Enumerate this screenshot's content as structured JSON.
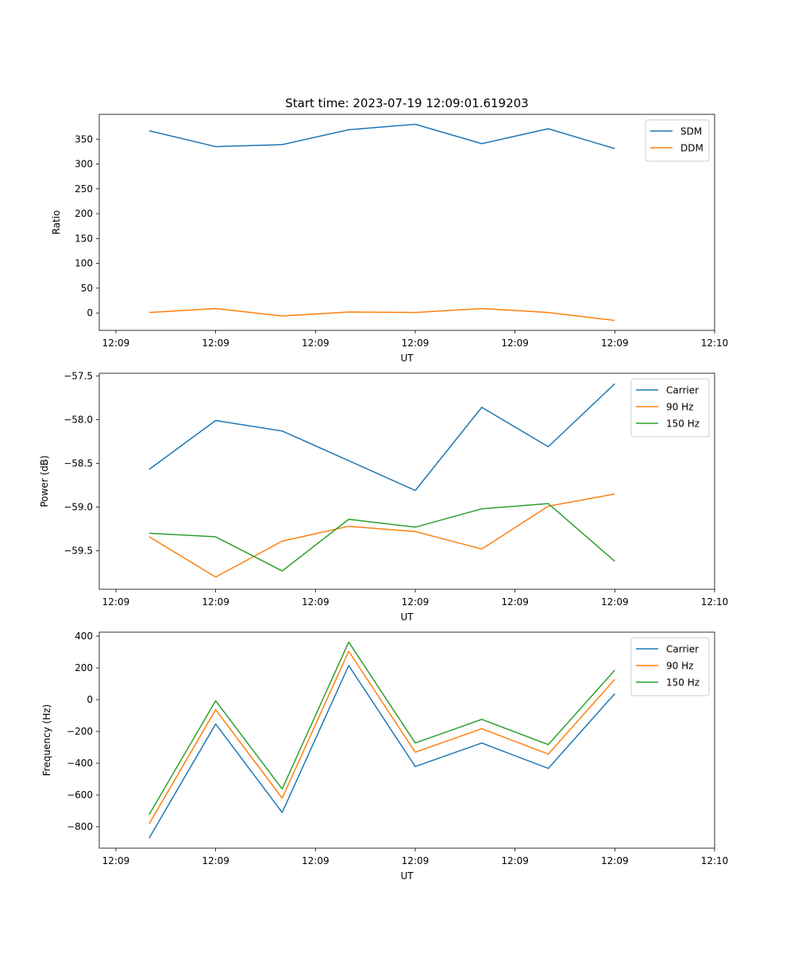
{
  "figure": {
    "title": "Start time: 2023-07-19 12:09:01.619203"
  },
  "chart_data": [
    {
      "type": "line",
      "title": "Start time: 2023-07-19 12:09:01.619203",
      "xlabel": "UT",
      "ylabel": "Ratio",
      "x": [
        1,
        2,
        3,
        4,
        5,
        6,
        7,
        8
      ],
      "xlim": [
        0.25,
        9.5
      ],
      "x_ticks": [
        0.5,
        2.0,
        3.5,
        5.0,
        6.5,
        8.0,
        9.5
      ],
      "x_tick_labels": [
        "12:09",
        "12:09",
        "12:09",
        "12:09",
        "12:09",
        "12:09",
        "12:10"
      ],
      "ylim": [
        -35,
        400
      ],
      "y_ticks": [
        0,
        50,
        100,
        150,
        200,
        250,
        300,
        350
      ],
      "y_tick_labels": [
        "0",
        "50",
        "100",
        "150",
        "200",
        "250",
        "300",
        "350"
      ],
      "legend_position": "top-right",
      "series": [
        {
          "name": "SDM",
          "color": "#1f77b4",
          "values": [
            367,
            335,
            339,
            369,
            380,
            341,
            371,
            331
          ]
        },
        {
          "name": "DDM",
          "color": "#ff7f0e",
          "values": [
            1,
            9,
            -6,
            2,
            1,
            9,
            1,
            -15
          ]
        }
      ]
    },
    {
      "type": "line",
      "title": "",
      "xlabel": "UT",
      "ylabel": "Power (dB)",
      "x": [
        1,
        2,
        3,
        4,
        5,
        6,
        7,
        8
      ],
      "xlim": [
        0.25,
        9.5
      ],
      "x_ticks": [
        0.5,
        2.0,
        3.5,
        5.0,
        6.5,
        8.0,
        9.5
      ],
      "x_tick_labels": [
        "12:09",
        "12:09",
        "12:09",
        "12:09",
        "12:09",
        "12:09",
        "12:10"
      ],
      "ylim": [
        -59.94,
        -57.47
      ],
      "y_ticks": [
        -59.5,
        -59.0,
        -58.5,
        -58.0,
        -57.5
      ],
      "y_tick_labels": [
        "−59.5",
        "−59.0",
        "−58.5",
        "−58.0",
        "−57.5"
      ],
      "legend_position": "top-right",
      "series": [
        {
          "name": "Carrier",
          "color": "#1f77b4",
          "values": [
            -58.57,
            -58.01,
            -58.13,
            -58.47,
            -58.81,
            -57.86,
            -58.31,
            -57.59
          ]
        },
        {
          "name": "90 Hz",
          "color": "#ff7f0e",
          "values": [
            -59.34,
            -59.8,
            -59.39,
            -59.22,
            -59.28,
            -59.48,
            -58.99,
            -58.85
          ]
        },
        {
          "name": "150 Hz",
          "color": "#2ca02c",
          "values": [
            -59.3,
            -59.34,
            -59.73,
            -59.14,
            -59.23,
            -59.02,
            -58.96,
            -59.62
          ]
        }
      ]
    },
    {
      "type": "line",
      "title": "",
      "xlabel": "UT",
      "ylabel": "Frequency (Hz)",
      "x": [
        1,
        2,
        3,
        4,
        5,
        6,
        7,
        8
      ],
      "xlim": [
        0.25,
        9.5
      ],
      "x_ticks": [
        0.5,
        2.0,
        3.5,
        5.0,
        6.5,
        8.0,
        9.5
      ],
      "x_tick_labels": [
        "12:09",
        "12:09",
        "12:09",
        "12:09",
        "12:09",
        "12:09",
        "12:10"
      ],
      "ylim": [
        -935,
        425
      ],
      "y_ticks": [
        -800,
        -600,
        -400,
        -200,
        0,
        200,
        400
      ],
      "y_tick_labels": [
        "−800",
        "−600",
        "−400",
        "−200",
        "0",
        "200",
        "400"
      ],
      "legend_position": "top-right",
      "series": [
        {
          "name": "Carrier",
          "color": "#1f77b4",
          "values": [
            -872,
            -153,
            -710,
            215,
            -421,
            -273,
            -433,
            38
          ]
        },
        {
          "name": "90 Hz",
          "color": "#ff7f0e",
          "values": [
            -782,
            -63,
            -620,
            305,
            -331,
            -183,
            -343,
            128
          ]
        },
        {
          "name": "150 Hz",
          "color": "#2ca02c",
          "values": [
            -724,
            -7,
            -562,
            363,
            -273,
            -124,
            -283,
            186
          ]
        }
      ]
    }
  ]
}
